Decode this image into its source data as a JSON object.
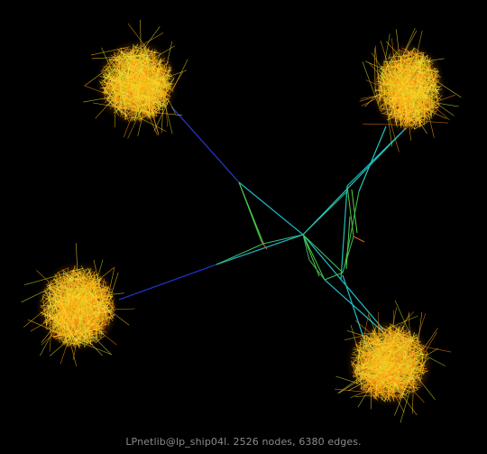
{
  "caption": "LPnetlib@lp_ship04l. 2526 nodes, 6380 edges.",
  "graph": {
    "nodes": 2526,
    "edges": 6380
  },
  "colors": {
    "background": "#000000",
    "caption": "#8a8a8a",
    "long_edge": "#2030c0",
    "mid_edge": "#20c0c0",
    "short_edge": "#40d040",
    "cluster_core": "#ffd020",
    "cluster_edge": "#ff8010"
  }
}
